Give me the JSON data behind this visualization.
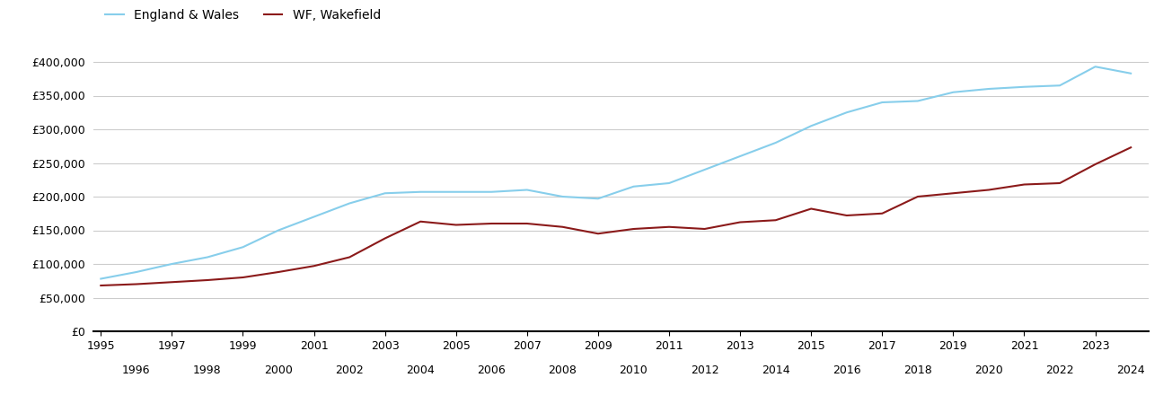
{
  "wakefield_years": [
    1995,
    1996,
    1997,
    1998,
    1999,
    2000,
    2001,
    2002,
    2003,
    2004,
    2005,
    2006,
    2007,
    2008,
    2009,
    2010,
    2011,
    2012,
    2013,
    2014,
    2015,
    2016,
    2017,
    2018,
    2019,
    2020,
    2021,
    2022,
    2023,
    2024
  ],
  "wakefield": [
    68000,
    70000,
    73000,
    76000,
    80000,
    88000,
    97000,
    110000,
    138000,
    163000,
    158000,
    160000,
    160000,
    155000,
    145000,
    152000,
    155000,
    152000,
    162000,
    165000,
    182000,
    172000,
    175000,
    200000,
    205000,
    210000,
    218000,
    220000,
    248000,
    273000
  ],
  "ew_years": [
    1995,
    1996,
    1997,
    1998,
    1999,
    2000,
    2001,
    2002,
    2003,
    2004,
    2005,
    2006,
    2007,
    2008,
    2009,
    2010,
    2011,
    2012,
    2013,
    2014,
    2015,
    2016,
    2017,
    2018,
    2019,
    2020,
    2021,
    2022,
    2023,
    2024
  ],
  "england_wales": [
    78000,
    88000,
    100000,
    110000,
    125000,
    150000,
    170000,
    190000,
    205000,
    207000,
    207000,
    207000,
    210000,
    200000,
    197000,
    215000,
    220000,
    240000,
    260000,
    280000,
    305000,
    325000,
    340000,
    342000,
    355000,
    360000,
    363000,
    365000,
    393000,
    383000
  ],
  "wakefield_color": "#8B1A1A",
  "england_wales_color": "#87CEEB",
  "background_color": "#ffffff",
  "grid_color": "#cccccc",
  "ylim": [
    0,
    420000
  ],
  "yticks": [
    0,
    50000,
    100000,
    150000,
    200000,
    250000,
    300000,
    350000,
    400000
  ],
  "legend_wakefield": "WF, Wakefield",
  "legend_england_wales": "England & Wales",
  "line_width": 1.5,
  "xlim_left": 1994.8,
  "xlim_right": 2024.5
}
